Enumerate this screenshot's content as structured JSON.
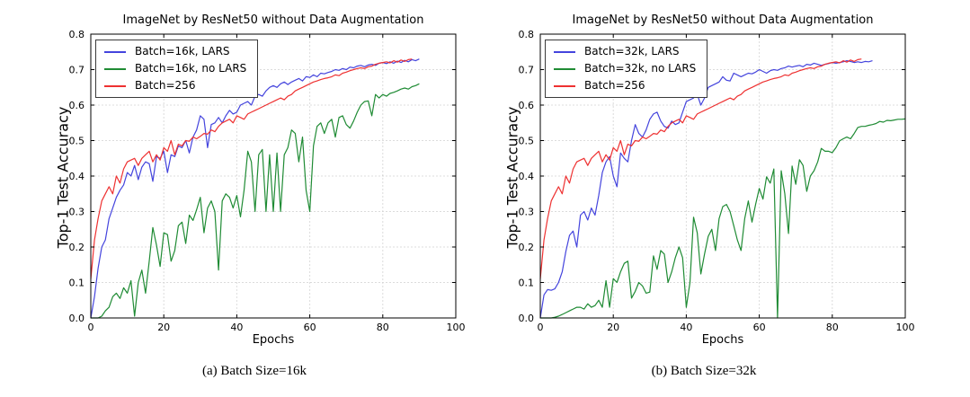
{
  "figure": {
    "background": "#ffffff",
    "colors": {
      "grid": "#b9b9b9",
      "spine": "#000000",
      "text": "#000000"
    }
  },
  "captions": {
    "a": "(a) Batch Size=16k",
    "b": "(b) Batch Size=32k"
  },
  "chart_data": [
    {
      "type": "line",
      "title": "ImageNet by ResNet50 without Data Augmentation",
      "xlabel": "Epochs",
      "ylabel": "Top-1 Test Accuracy",
      "xlim": [
        0,
        100
      ],
      "ylim": [
        0.0,
        0.8
      ],
      "x_tick_labels": [
        "0",
        "20",
        "40",
        "60",
        "80",
        "100"
      ],
      "y_tick_labels": [
        "0.0",
        "0.1",
        "0.2",
        "0.3",
        "0.4",
        "0.5",
        "0.6",
        "0.7",
        "0.8"
      ],
      "grid": true,
      "legend_position": "upper-left",
      "series": [
        {
          "name": "Batch=16k, LARS",
          "color": "#4444dd",
          "values": [
            0.0,
            0.06,
            0.14,
            0.2,
            0.22,
            0.28,
            0.31,
            0.34,
            0.36,
            0.375,
            0.41,
            0.4,
            0.43,
            0.39,
            0.425,
            0.44,
            0.435,
            0.385,
            0.455,
            0.45,
            0.47,
            0.41,
            0.46,
            0.455,
            0.485,
            0.48,
            0.5,
            0.465,
            0.51,
            0.53,
            0.57,
            0.56,
            0.48,
            0.545,
            0.55,
            0.565,
            0.55,
            0.57,
            0.585,
            0.575,
            0.58,
            0.6,
            0.605,
            0.61,
            0.6,
            0.625,
            0.63,
            0.625,
            0.64,
            0.65,
            0.655,
            0.65,
            0.66,
            0.665,
            0.658,
            0.665,
            0.67,
            0.675,
            0.668,
            0.68,
            0.678,
            0.685,
            0.68,
            0.69,
            0.688,
            0.692,
            0.695,
            0.7,
            0.698,
            0.703,
            0.7,
            0.707,
            0.705,
            0.71,
            0.712,
            0.708,
            0.713,
            0.715,
            0.712,
            0.718,
            0.72,
            0.717,
            0.722,
            0.718,
            0.724,
            0.72,
            0.726,
            0.722,
            0.728,
            0.725,
            0.73
          ]
        },
        {
          "name": "Batch=16k, no LARS",
          "color": "#1f8b34",
          "values": [
            0.0,
            0.0,
            0.0,
            0.005,
            0.02,
            0.03,
            0.06,
            0.07,
            0.055,
            0.085,
            0.07,
            0.105,
            0.005,
            0.1,
            0.135,
            0.07,
            0.16,
            0.255,
            0.205,
            0.145,
            0.24,
            0.235,
            0.16,
            0.19,
            0.26,
            0.27,
            0.21,
            0.29,
            0.275,
            0.305,
            0.34,
            0.24,
            0.31,
            0.33,
            0.3,
            0.135,
            0.33,
            0.35,
            0.34,
            0.31,
            0.345,
            0.285,
            0.36,
            0.47,
            0.44,
            0.3,
            0.46,
            0.475,
            0.3,
            0.46,
            0.3,
            0.465,
            0.3,
            0.46,
            0.48,
            0.53,
            0.52,
            0.44,
            0.51,
            0.36,
            0.3,
            0.485,
            0.54,
            0.55,
            0.52,
            0.55,
            0.56,
            0.51,
            0.565,
            0.57,
            0.545,
            0.535,
            0.555,
            0.58,
            0.6,
            0.61,
            0.612,
            0.57,
            0.63,
            0.62,
            0.63,
            0.625,
            0.633,
            0.636,
            0.64,
            0.645,
            0.648,
            0.645,
            0.652,
            0.655,
            0.66
          ]
        },
        {
          "name": "Batch=256",
          "color": "#ee3131",
          "values": [
            0.11,
            0.22,
            0.28,
            0.33,
            0.35,
            0.37,
            0.35,
            0.4,
            0.38,
            0.42,
            0.44,
            0.445,
            0.45,
            0.43,
            0.45,
            0.46,
            0.47,
            0.44,
            0.46,
            0.445,
            0.48,
            0.47,
            0.5,
            0.46,
            0.49,
            0.485,
            0.5,
            0.498,
            0.51,
            0.505,
            0.512,
            0.52,
            0.518,
            0.53,
            0.525,
            0.54,
            0.55,
            0.555,
            0.56,
            0.55,
            0.57,
            0.565,
            0.56,
            0.575,
            0.58,
            0.585,
            0.59,
            0.595,
            0.6,
            0.605,
            0.61,
            0.615,
            0.62,
            0.615,
            0.625,
            0.63,
            0.64,
            0.645,
            0.65,
            0.655,
            0.66,
            0.665,
            0.668,
            0.672,
            0.675,
            0.677,
            0.68,
            0.685,
            0.683,
            0.69,
            0.693,
            0.697,
            0.7,
            0.703,
            0.705,
            0.703,
            0.708,
            0.71,
            0.715,
            0.718,
            0.72,
            0.722,
            0.719,
            0.725,
            0.721,
            0.727,
            0.723,
            0.728,
            0.73
          ]
        }
      ]
    },
    {
      "type": "line",
      "title": "ImageNet by ResNet50 without Data Augmentation",
      "xlabel": "Epochs",
      "ylabel": "Top-1 Test Accuracy",
      "xlim": [
        0,
        100
      ],
      "ylim": [
        0.0,
        0.8
      ],
      "x_tick_labels": [
        "0",
        "20",
        "40",
        "60",
        "80",
        "100"
      ],
      "y_tick_labels": [
        "0.0",
        "0.1",
        "0.2",
        "0.3",
        "0.4",
        "0.5",
        "0.6",
        "0.7",
        "0.8"
      ],
      "grid": true,
      "legend_position": "upper-left",
      "series": [
        {
          "name": "Batch=32k, LARS",
          "color": "#4444dd",
          "values": [
            0.0,
            0.065,
            0.08,
            0.078,
            0.082,
            0.1,
            0.13,
            0.187,
            0.233,
            0.245,
            0.2,
            0.29,
            0.3,
            0.276,
            0.31,
            0.29,
            0.345,
            0.41,
            0.44,
            0.455,
            0.4,
            0.37,
            0.465,
            0.45,
            0.44,
            0.5,
            0.545,
            0.52,
            0.51,
            0.53,
            0.56,
            0.575,
            0.58,
            0.555,
            0.54,
            0.535,
            0.555,
            0.545,
            0.55,
            0.58,
            0.61,
            0.615,
            0.62,
            0.63,
            0.6,
            0.62,
            0.65,
            0.655,
            0.66,
            0.665,
            0.68,
            0.67,
            0.668,
            0.69,
            0.685,
            0.68,
            0.685,
            0.69,
            0.688,
            0.693,
            0.7,
            0.695,
            0.69,
            0.697,
            0.7,
            0.698,
            0.703,
            0.705,
            0.71,
            0.707,
            0.71,
            0.712,
            0.708,
            0.715,
            0.713,
            0.718,
            0.715,
            0.712,
            0.715,
            0.717,
            0.72,
            0.718,
            0.72,
            0.722,
            0.725,
            0.723,
            0.72,
            0.722,
            0.72,
            0.723,
            0.722,
            0.725
          ]
        },
        {
          "name": "Batch=32k, no LARS",
          "color": "#1f8b34",
          "values": [
            0.0,
            0.0,
            0.0,
            0.0,
            0.002,
            0.005,
            0.01,
            0.015,
            0.02,
            0.025,
            0.03,
            0.03,
            0.025,
            0.04,
            0.03,
            0.035,
            0.05,
            0.03,
            0.105,
            0.03,
            0.111,
            0.1,
            0.13,
            0.154,
            0.16,
            0.056,
            0.075,
            0.1,
            0.09,
            0.07,
            0.073,
            0.175,
            0.137,
            0.19,
            0.18,
            0.1,
            0.13,
            0.17,
            0.2,
            0.17,
            0.03,
            0.1,
            0.284,
            0.24,
            0.124,
            0.18,
            0.23,
            0.25,
            0.19,
            0.28,
            0.314,
            0.32,
            0.3,
            0.26,
            0.22,
            0.19,
            0.28,
            0.33,
            0.27,
            0.32,
            0.365,
            0.335,
            0.398,
            0.38,
            0.42,
            0.0,
            0.415,
            0.35,
            0.238,
            0.428,
            0.377,
            0.446,
            0.43,
            0.357,
            0.4,
            0.415,
            0.44,
            0.478,
            0.47,
            0.47,
            0.466,
            0.48,
            0.499,
            0.505,
            0.51,
            0.505,
            0.52,
            0.537,
            0.54,
            0.54,
            0.543,
            0.545,
            0.548,
            0.554,
            0.552,
            0.557,
            0.556,
            0.558,
            0.56,
            0.56,
            0.561
          ]
        },
        {
          "name": "Batch=256",
          "color": "#ee3131",
          "values": [
            0.11,
            0.22,
            0.28,
            0.33,
            0.35,
            0.37,
            0.35,
            0.4,
            0.38,
            0.42,
            0.44,
            0.445,
            0.45,
            0.43,
            0.45,
            0.46,
            0.47,
            0.44,
            0.46,
            0.445,
            0.48,
            0.47,
            0.5,
            0.46,
            0.49,
            0.485,
            0.5,
            0.498,
            0.51,
            0.505,
            0.512,
            0.52,
            0.518,
            0.53,
            0.525,
            0.54,
            0.55,
            0.555,
            0.56,
            0.55,
            0.57,
            0.565,
            0.56,
            0.575,
            0.58,
            0.585,
            0.59,
            0.595,
            0.6,
            0.605,
            0.61,
            0.615,
            0.62,
            0.615,
            0.625,
            0.63,
            0.64,
            0.645,
            0.65,
            0.655,
            0.66,
            0.665,
            0.668,
            0.672,
            0.675,
            0.677,
            0.68,
            0.685,
            0.683,
            0.69,
            0.693,
            0.697,
            0.7,
            0.703,
            0.705,
            0.703,
            0.708,
            0.71,
            0.715,
            0.718,
            0.72,
            0.722,
            0.719,
            0.725,
            0.721,
            0.727,
            0.723,
            0.728,
            0.73
          ]
        }
      ]
    }
  ]
}
